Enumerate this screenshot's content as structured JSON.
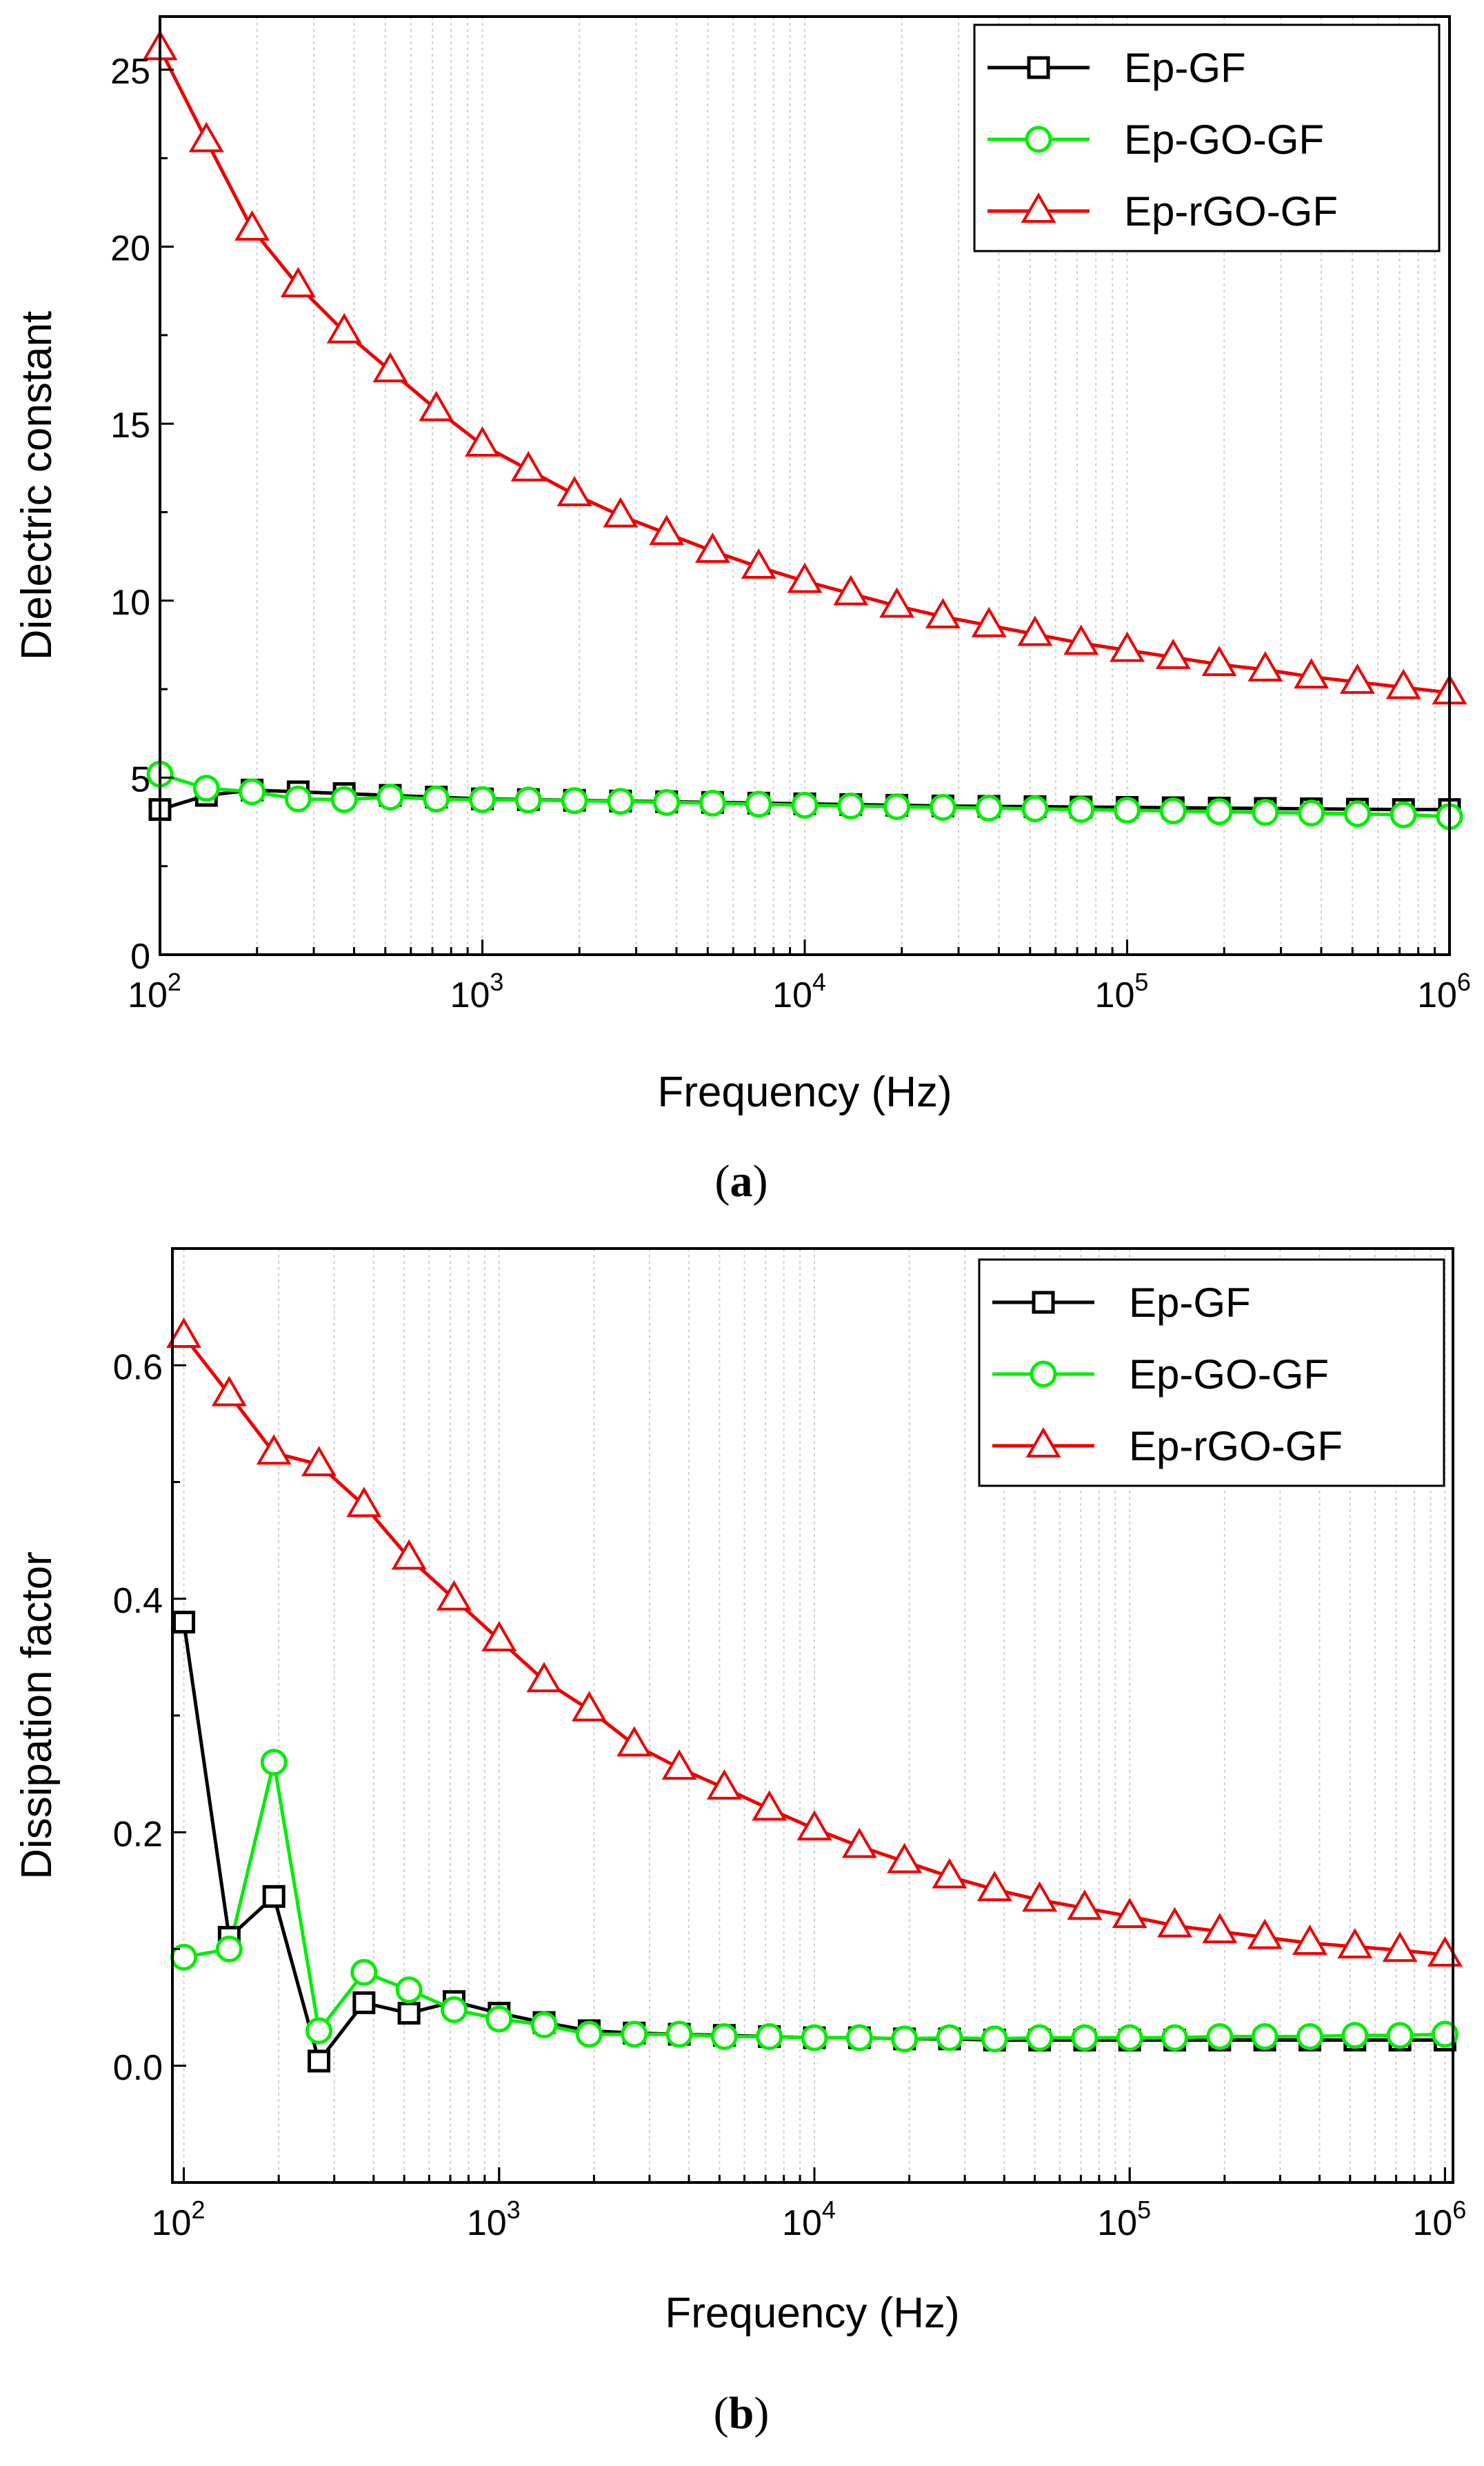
{
  "chart_data": [
    {
      "id": "a",
      "type": "line",
      "panel_label": "a",
      "title": "",
      "xlabel": "Frequency (Hz)",
      "ylabel": "Dielectric constant",
      "xscale": "log",
      "xlim": [
        100,
        1000000
      ],
      "ylim": [
        0,
        26.5
      ],
      "yticks": [
        0,
        5,
        10,
        15,
        20,
        25
      ],
      "ytick_labels": [
        "0",
        "5",
        "10",
        "15",
        "20",
        "25"
      ],
      "xticks": [
        100,
        1000,
        10000,
        100000,
        1000000
      ],
      "xtick_base": [
        "10",
        "10",
        "10",
        "10",
        "10"
      ],
      "xtick_exp": [
        "2",
        "3",
        "4",
        "5",
        "6"
      ],
      "legend_position": "top-right",
      "x": [
        100,
        139.3,
        193.1,
        268.3,
        372.8,
        517.9,
        719.7,
        1000,
        1389,
        1931,
        2683,
        3728,
        5179,
        7197,
        10000,
        13895,
        19307,
        26827,
        37276,
        51795,
        71969,
        100000,
        138950,
        193070,
        268270,
        372760,
        517950,
        719690,
        1000000
      ],
      "series": [
        {
          "name": "Ep-GF",
          "color": "#000000",
          "marker": "square",
          "values": [
            4.1,
            4.5,
            4.65,
            4.6,
            4.55,
            4.5,
            4.45,
            4.4,
            4.38,
            4.36,
            4.34,
            4.32,
            4.3,
            4.28,
            4.26,
            4.24,
            4.22,
            4.2,
            4.19,
            4.18,
            4.17,
            4.16,
            4.15,
            4.14,
            4.13,
            4.12,
            4.11,
            4.1,
            4.1
          ]
        },
        {
          "name": "Ep-GO-GF",
          "color": "#00ee00",
          "marker": "circle",
          "values": [
            5.1,
            4.7,
            4.6,
            4.4,
            4.38,
            4.45,
            4.4,
            4.38,
            4.37,
            4.35,
            4.33,
            4.3,
            4.28,
            4.25,
            4.22,
            4.2,
            4.18,
            4.16,
            4.14,
            4.12,
            4.1,
            4.08,
            4.06,
            4.04,
            4.02,
            4.0,
            3.98,
            3.95,
            3.9
          ]
        },
        {
          "name": "Ep-rGO-GF",
          "color": "#ee0000",
          "marker": "triangle",
          "values": [
            25.6,
            23.0,
            20.5,
            18.9,
            17.6,
            16.5,
            15.4,
            14.4,
            13.7,
            13.0,
            12.4,
            11.9,
            11.4,
            10.95,
            10.55,
            10.2,
            9.85,
            9.55,
            9.3,
            9.05,
            8.8,
            8.6,
            8.4,
            8.2,
            8.05,
            7.85,
            7.7,
            7.55,
            7.4
          ]
        }
      ]
    },
    {
      "id": "b",
      "type": "line",
      "panel_label": "b",
      "title": "",
      "xlabel": "Frequency (Hz)",
      "ylabel": "Dissipation factor",
      "xscale": "log",
      "xlim": [
        92,
        1060000
      ],
      "ylim": [
        -0.1,
        0.7
      ],
      "yticks": [
        0.0,
        0.2,
        0.4,
        0.6
      ],
      "ytick_labels": [
        "0.0",
        "0.2",
        "0.4",
        "0.6"
      ],
      "xticks": [
        100,
        1000,
        10000,
        100000,
        1000000
      ],
      "xtick_base": [
        "10",
        "10",
        "10",
        "10",
        "10"
      ],
      "xtick_exp": [
        "2",
        "3",
        "4",
        "5",
        "6"
      ],
      "legend_position": "top-right",
      "x": [
        100,
        139.3,
        193.1,
        268.3,
        372.8,
        517.9,
        719.7,
        1000,
        1389,
        1931,
        2683,
        3728,
        5179,
        7197,
        10000,
        13895,
        19307,
        26827,
        37276,
        51795,
        71969,
        100000,
        138950,
        193070,
        268270,
        372760,
        517950,
        719690,
        1000000
      ],
      "series": [
        {
          "name": "Ep-GF",
          "color": "#000000",
          "marker": "square",
          "values": [
            0.38,
            0.11,
            0.145,
            0.004,
            0.054,
            0.045,
            0.055,
            0.045,
            0.037,
            0.03,
            0.028,
            0.027,
            0.026,
            0.025,
            0.024,
            0.024,
            0.023,
            0.023,
            0.022,
            0.022,
            0.022,
            0.022,
            0.022,
            0.022,
            0.022,
            0.022,
            0.022,
            0.022,
            0.022
          ]
        },
        {
          "name": "Ep-GO-GF",
          "color": "#00ee00",
          "marker": "circle",
          "values": [
            0.093,
            0.1,
            0.26,
            0.03,
            0.08,
            0.065,
            0.048,
            0.04,
            0.035,
            0.027,
            0.027,
            0.027,
            0.025,
            0.025,
            0.024,
            0.024,
            0.023,
            0.024,
            0.023,
            0.024,
            0.024,
            0.024,
            0.024,
            0.025,
            0.025,
            0.025,
            0.026,
            0.026,
            0.027
          ]
        },
        {
          "name": "Ep-rGO-GF",
          "color": "#ee0000",
          "marker": "triangle",
          "values": [
            0.625,
            0.575,
            0.525,
            0.515,
            0.48,
            0.435,
            0.4,
            0.365,
            0.33,
            0.305,
            0.275,
            0.255,
            0.238,
            0.22,
            0.203,
            0.188,
            0.175,
            0.162,
            0.151,
            0.142,
            0.135,
            0.128,
            0.12,
            0.115,
            0.11,
            0.105,
            0.102,
            0.099,
            0.095
          ]
        }
      ]
    }
  ]
}
